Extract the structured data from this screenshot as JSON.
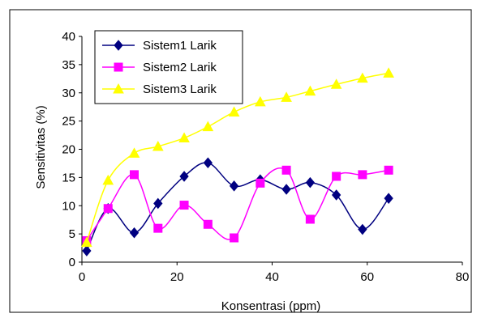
{
  "chart_data": {
    "type": "line",
    "xlabel": "Konsentrasi (ppm)",
    "ylabel": "Sensitivitas (%)",
    "xlim": [
      0,
      80
    ],
    "ylim": [
      0,
      40
    ],
    "xticks": [
      0,
      20,
      40,
      60,
      80
    ],
    "yticks": [
      0,
      5,
      10,
      15,
      20,
      25,
      30,
      35,
      40
    ],
    "grid": false,
    "legend": "top-left",
    "series": [
      {
        "name": "Sistem1 Larik",
        "color": "#000080",
        "marker": "diamond",
        "x": [
          1,
          5.5,
          11,
          16,
          21.5,
          26.5,
          32,
          37.5,
          43,
          48,
          53.5,
          59,
          64.5
        ],
        "y": [
          2,
          9.5,
          5.2,
          10.4,
          15.2,
          17.6,
          13.5,
          14.6,
          12.9,
          14.1,
          11.9,
          5.8,
          11.3
        ]
      },
      {
        "name": "Sistem2 Larik",
        "color": "#ff00ff",
        "marker": "square",
        "x": [
          1,
          5.5,
          11,
          16,
          21.5,
          26.5,
          32,
          37.5,
          43,
          48,
          53.5,
          59,
          64.5
        ],
        "y": [
          3.8,
          9.5,
          15.5,
          6,
          10.1,
          6.7,
          4.3,
          14,
          16.3,
          7.6,
          15.2,
          15.5,
          16.3
        ]
      },
      {
        "name": "Sistem3 Larik",
        "color": "#ffff00",
        "marker": "triangle",
        "x": [
          1,
          5.5,
          11,
          16,
          21.5,
          26.5,
          32,
          37.5,
          43,
          48,
          53.5,
          59,
          64.5
        ],
        "y": [
          3.5,
          14.5,
          19.3,
          20.5,
          22,
          24,
          26.6,
          28.4,
          29.2,
          30.3,
          31.5,
          32.6,
          33.5
        ]
      }
    ]
  }
}
